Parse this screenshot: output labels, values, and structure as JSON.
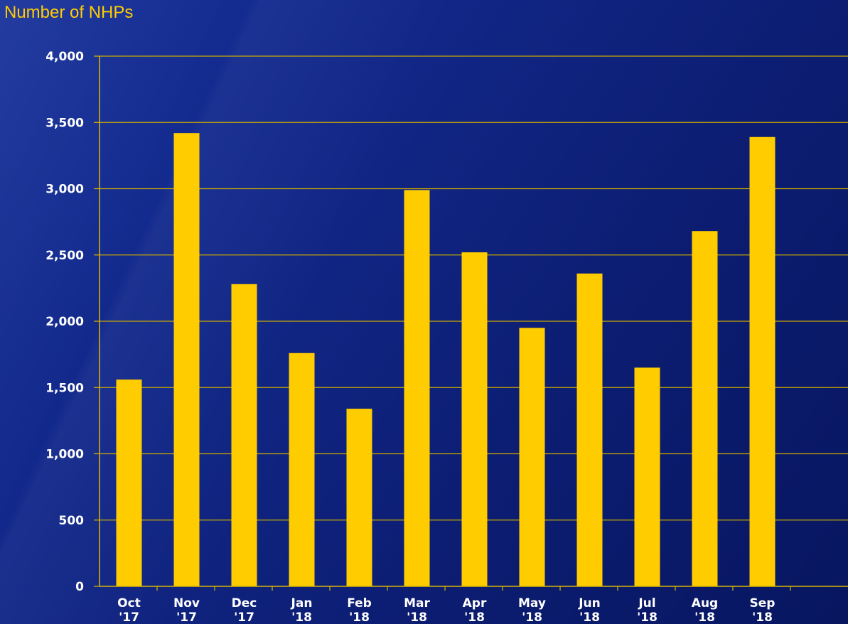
{
  "colors": {
    "bar": "#ffcc00",
    "axis": "#d9b600",
    "grid": "#c9a800",
    "text": "#ffffff",
    "ylabel": "#ffcc00"
  },
  "chart_data": {
    "type": "bar",
    "title": "",
    "xlabel": "",
    "ylabel": "Number of NHPs",
    "ylim": [
      0,
      4000
    ],
    "yticks": [
      "0",
      "500",
      "1,000",
      "1,500",
      "2,000",
      "2,500",
      "3,000",
      "3,500",
      "4,000"
    ],
    "grid": true,
    "categories": [
      {
        "month": "Oct",
        "year": "'17"
      },
      {
        "month": "Nov",
        "year": "'17"
      },
      {
        "month": "Dec",
        "year": "'17"
      },
      {
        "month": "Jan",
        "year": "'18"
      },
      {
        "month": "Feb",
        "year": "'18"
      },
      {
        "month": "Mar",
        "year": "'18"
      },
      {
        "month": "Apr",
        "year": "'18"
      },
      {
        "month": "May",
        "year": "'18"
      },
      {
        "month": "Jun",
        "year": "'18"
      },
      {
        "month": "Jul",
        "year": "'18"
      },
      {
        "month": "Aug",
        "year": "'18"
      },
      {
        "month": "Sep",
        "year": "'18"
      }
    ],
    "values": [
      1560,
      3420,
      2280,
      1760,
      1340,
      2990,
      2520,
      1950,
      2360,
      1650,
      2680,
      3390
    ]
  }
}
